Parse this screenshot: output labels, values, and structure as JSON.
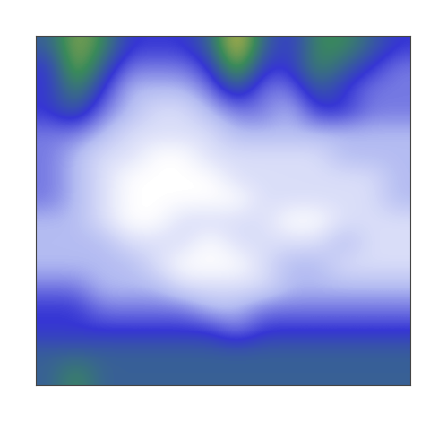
{
  "chart_data": {
    "type": "heatmap",
    "tick_labels": false,
    "cells": [
      [
        6,
        8,
        7,
        5,
        5,
        5,
        6,
        9,
        6,
        5,
        7,
        7,
        6,
        5
      ],
      [
        5,
        8,
        6,
        4,
        4,
        4,
        5,
        8,
        5,
        5,
        7,
        6,
        5,
        4
      ],
      [
        5,
        7,
        5,
        3,
        3,
        3,
        4,
        6,
        4,
        4,
        6,
        5,
        4,
        4
      ],
      [
        5,
        6,
        4,
        3,
        2,
        2,
        3,
        4,
        4,
        3,
        5,
        5,
        4,
        4
      ],
      [
        4,
        4,
        3,
        2,
        2,
        2,
        2,
        3,
        3,
        3,
        3,
        3,
        3,
        3
      ],
      [
        4,
        3,
        2,
        2,
        1,
        1,
        2,
        2,
        2,
        2,
        2,
        3,
        3,
        3
      ],
      [
        4,
        3,
        2,
        1,
        1,
        1,
        1,
        2,
        2,
        2,
        2,
        2,
        2,
        3
      ],
      [
        4,
        3,
        2,
        1,
        1,
        1,
        1,
        1,
        2,
        2,
        2,
        2,
        2,
        3
      ],
      [
        3,
        3,
        2,
        1,
        1,
        2,
        2,
        2,
        2,
        1,
        1,
        2,
        2,
        2
      ],
      [
        3,
        3,
        3,
        2,
        2,
        2,
        1,
        2,
        2,
        2,
        2,
        3,
        2,
        2
      ],
      [
        3,
        3,
        3,
        3,
        2,
        1,
        1,
        1,
        2,
        3,
        3,
        2,
        2,
        2
      ],
      [
        4,
        4,
        3,
        3,
        3,
        2,
        2,
        2,
        2,
        3,
        3,
        3,
        3,
        3
      ],
      [
        5,
        5,
        4,
        4,
        4,
        4,
        3,
        3,
        4,
        4,
        4,
        4,
        4,
        4
      ],
      [
        5,
        5,
        5,
        5,
        5,
        5,
        5,
        4,
        5,
        5,
        5,
        5,
        5,
        5
      ],
      [
        6,
        6,
        6,
        6,
        6,
        6,
        6,
        6,
        6,
        6,
        6,
        6,
        6,
        6
      ],
      [
        6,
        7,
        6,
        6,
        6,
        6,
        6,
        6,
        6,
        6,
        6,
        6,
        6,
        6
      ]
    ]
  }
}
